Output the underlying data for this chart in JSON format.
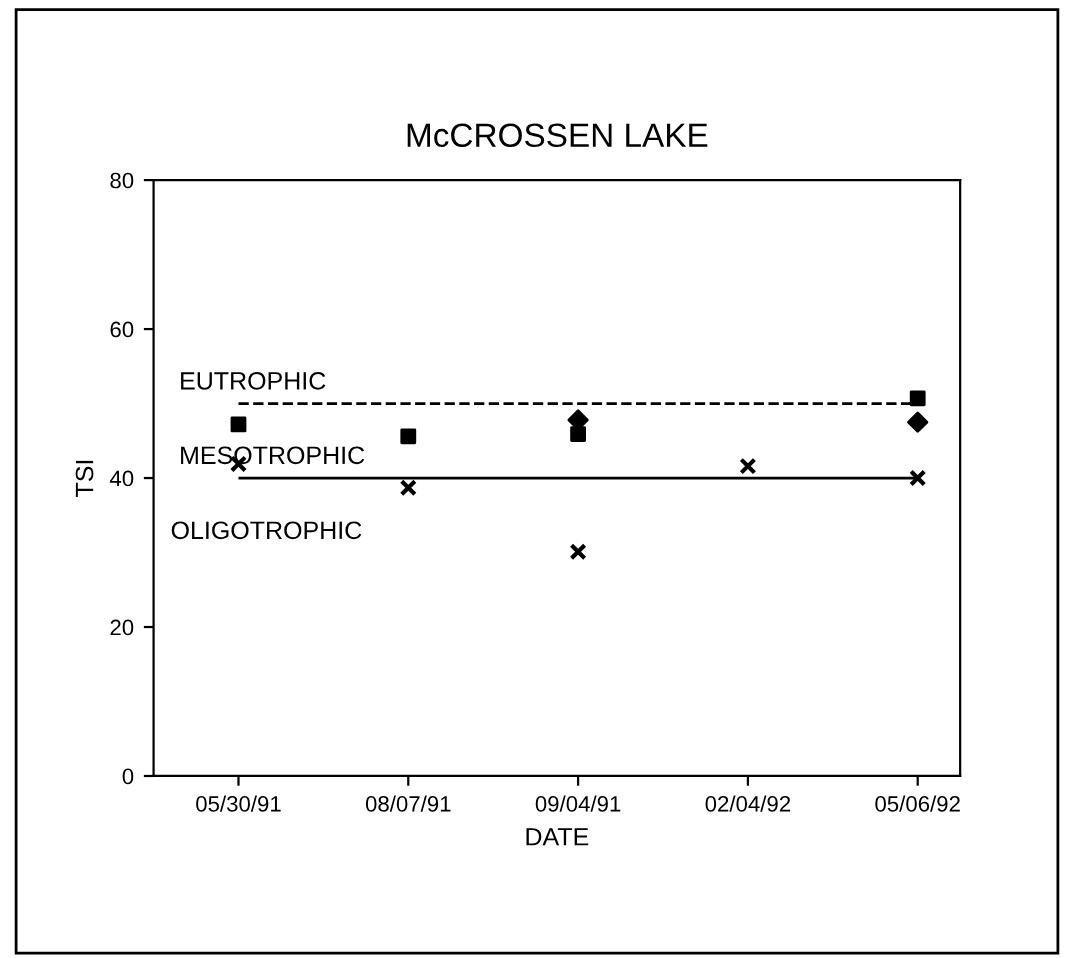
{
  "chart_data": {
    "type": "scatter",
    "title": "McCROSSEN LAKE",
    "xlabel": "DATE",
    "ylabel": "TSI",
    "categories": [
      "05/30/91",
      "08/07/91",
      "09/04/91",
      "02/04/92",
      "05/06/92"
    ],
    "series": [
      {
        "color": "#000000",
        "marker": "square",
        "values": [
          47.2,
          45.6,
          45.9,
          null,
          50.7
        ]
      },
      {
        "color": "#000000",
        "marker": "cross",
        "values": [
          41.9,
          38.7,
          30.1,
          41.6,
          40
        ]
      },
      {
        "color": "#000000",
        "marker": "diamond",
        "values": [
          null,
          null,
          47.8,
          null,
          47.5
        ]
      }
    ],
    "ylim": [
      0,
      80
    ],
    "yticks": [
      0,
      20,
      40,
      60,
      80
    ],
    "grid": false,
    "ref_lines": [
      {
        "axis": "y",
        "value": 50,
        "label": "EUTROPHIC",
        "color": "#000000",
        "line_style": "dashed"
      },
      {
        "axis": "y",
        "value": 40,
        "label": "MESOTROPHIC",
        "color": "#000000",
        "line_style": "solid"
      }
    ],
    "annotations": [
      "OLIGOTROPHIC"
    ]
  }
}
